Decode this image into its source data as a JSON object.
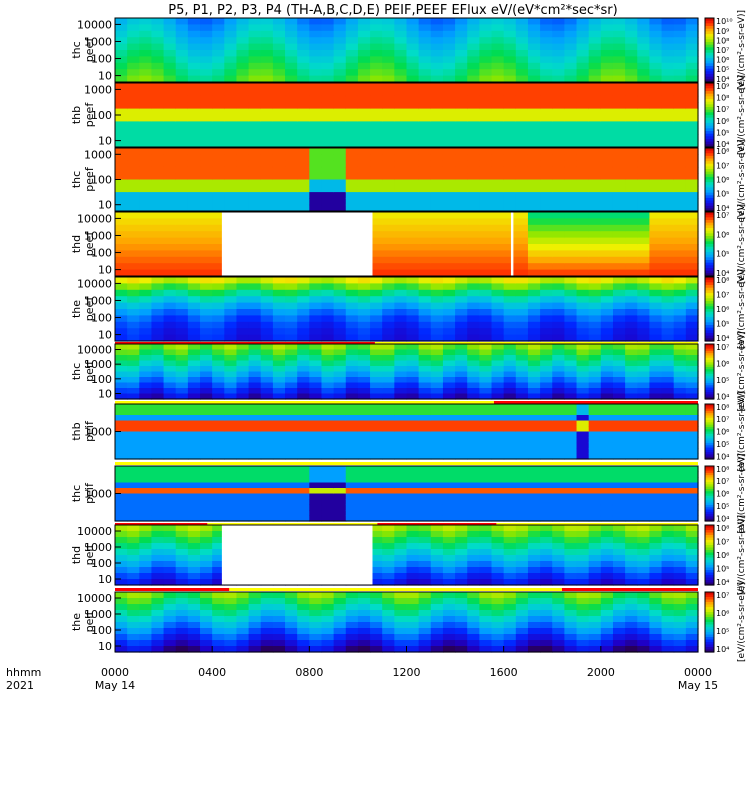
{
  "chart_data": {
    "type": "heatmap",
    "title": "P5, P1, P2, P3, P4 (TH-A,B,C,D,E) PEIF,PEEF EFlux eV/(eV*cm²*sec*sr)",
    "x_axis": {
      "row_label_top": "hhmm",
      "row_label_bottom": "2021",
      "ticks": [
        "0000",
        "0400",
        "0800",
        "1200",
        "1600",
        "2000",
        "0000"
      ],
      "date_labels": [
        {
          "at": "0000",
          "label": "May 14"
        },
        {
          "at": "0000",
          "label": "May 15"
        }
      ],
      "range_hours": [
        0,
        24
      ]
    },
    "colorbar_label": "[eV/(cm²-s-sr-eV)]",
    "panels": [
      {
        "name": "thc\npeef",
        "probe": "thc",
        "product": "peef",
        "y_log": true,
        "y_ticks": [
          "10",
          "100",
          "1000",
          "10000"
        ],
        "cbar_ticks": [
          "10⁴",
          "10⁵",
          "10⁶",
          "10⁷",
          "10⁸",
          "10⁹",
          "10¹⁰"
        ]
      },
      {
        "name": "thb\npeef",
        "probe": "thb",
        "product": "peef",
        "y_log": true,
        "y_ticks": [
          "10",
          "100",
          "1000"
        ],
        "cbar_ticks": [
          "10⁴",
          "10⁵",
          "10⁶",
          "10⁷",
          "10⁸",
          "10⁹"
        ]
      },
      {
        "name": "thc\npeef",
        "probe": "thc",
        "product": "peef",
        "y_log": true,
        "y_ticks": [
          "10",
          "100",
          "1000"
        ],
        "cbar_ticks": [
          "10⁴",
          "10⁵",
          "10⁶",
          "10⁷",
          "10⁸"
        ]
      },
      {
        "name": "thd\npeef",
        "probe": "thd",
        "product": "peef",
        "y_log": true,
        "y_ticks": [
          "10",
          "100",
          "1000",
          "10000"
        ],
        "cbar_ticks": [
          "10⁴",
          "10⁵",
          "10⁶",
          "10⁷"
        ],
        "data_gaps_hours": [
          [
            4.4,
            10.6
          ],
          [
            16.3,
            16.4
          ]
        ]
      },
      {
        "name": "the\npeef",
        "probe": "the",
        "product": "peef",
        "y_log": true,
        "y_ticks": [
          "10",
          "100",
          "1000",
          "10000"
        ],
        "cbar_ticks": [
          "10⁴",
          "10⁵",
          "10⁶",
          "10⁷",
          "10⁸"
        ]
      },
      {
        "name": "thc\npeif",
        "probe": "thc",
        "product": "peif",
        "y_log": true,
        "y_ticks": [
          "10",
          "100",
          "1000",
          "10000"
        ],
        "cbar_ticks": [
          "10⁴",
          "10⁵",
          "10⁶",
          "10⁷"
        ]
      },
      {
        "name": "thb\npeif",
        "probe": "thb",
        "product": "peif",
        "y_log": true,
        "y_ticks": [
          "1000"
        ],
        "cbar_ticks": [
          "10⁴",
          "10⁵",
          "10⁶",
          "10⁷",
          "10⁸"
        ]
      },
      {
        "name": "thc\npeif",
        "probe": "thc",
        "product": "peif",
        "y_log": true,
        "y_ticks": [
          "1000"
        ],
        "cbar_ticks": [
          "10⁴",
          "10⁵",
          "10⁶",
          "10⁷",
          "10⁸"
        ]
      },
      {
        "name": "thd\npeif",
        "probe": "thd",
        "product": "peif",
        "y_log": true,
        "y_ticks": [
          "10",
          "100",
          "1000",
          "10000"
        ],
        "cbar_ticks": [
          "10⁴",
          "10⁵",
          "10⁶",
          "10⁷",
          "10⁸"
        ],
        "data_gaps_hours": [
          [
            4.4,
            10.6
          ]
        ]
      },
      {
        "name": "the\npeif",
        "probe": "the",
        "product": "peif",
        "y_log": true,
        "y_ticks": [
          "10",
          "100",
          "1000",
          "10000"
        ],
        "cbar_ticks": [
          "10⁴",
          "10⁵",
          "10⁶",
          "10⁷"
        ]
      }
    ],
    "colors": {
      "background": "#ffffff",
      "flag_red": "#ff0000",
      "flag_yellow": "#ffff00"
    }
  }
}
